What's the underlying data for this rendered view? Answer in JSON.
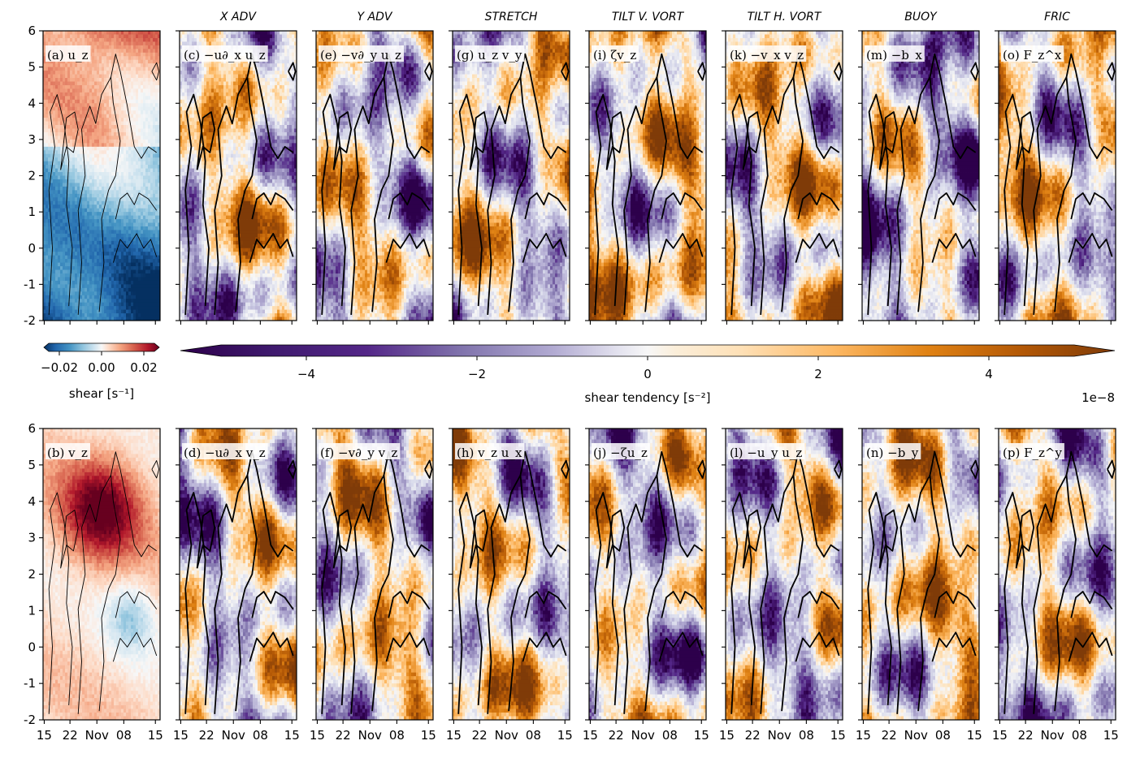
{
  "chart_data": {
    "type": "heatmap",
    "y_ticks": [
      "-2",
      "-1",
      "0",
      "1",
      "2",
      "3",
      "4",
      "5",
      "6"
    ],
    "ylim": [
      -2,
      6
    ],
    "x_ticks": [
      "15",
      "22",
      "Nov",
      "08",
      "15"
    ],
    "column_titles": [
      "",
      "X ADV",
      "Y ADV",
      "STRETCH",
      "TILT V. VORT",
      "TILT H. VORT",
      "BUOY",
      "FRIC"
    ],
    "panels_top": [
      {
        "label": "(a) u_z",
        "colormap": "shear"
      },
      {
        "label": "(c) −u∂_x u_z",
        "colormap": "tendency"
      },
      {
        "label": "(e) −v∂_y u_z",
        "colormap": "tendency"
      },
      {
        "label": "(g) u_z v_y",
        "colormap": "tendency"
      },
      {
        "label": "(i) ζv_z",
        "colormap": "tendency"
      },
      {
        "label": "(k) −v_x v_z",
        "colormap": "tendency"
      },
      {
        "label": "(m) −b_x",
        "colormap": "tendency"
      },
      {
        "label": "(o) F_z^x",
        "colormap": "tendency"
      }
    ],
    "panels_bottom": [
      {
        "label": "(b) v_z",
        "colormap": "shear"
      },
      {
        "label": "(d) −u∂_x v_z",
        "colormap": "tendency"
      },
      {
        "label": "(f) −v∂_y v_z",
        "colormap": "tendency"
      },
      {
        "label": "(h) v_z u_x",
        "colormap": "tendency"
      },
      {
        "label": "(j) −ζu_z",
        "colormap": "tendency"
      },
      {
        "label": "(l) −u_y u_z",
        "colormap": "tendency"
      },
      {
        "label": "(n) −b_y",
        "colormap": "tendency"
      },
      {
        "label": "(p) F_z^y",
        "colormap": "tendency"
      }
    ],
    "colorbar_shear": {
      "ticks": [
        "−0.02",
        "0.00",
        "0.02"
      ],
      "range": [
        -0.025,
        0.025
      ],
      "label": "shear [s⁻¹]",
      "colors": [
        "#053061",
        "#2166ac",
        "#4393c3",
        "#92c5de",
        "#d1e5f0",
        "#f7f7f7",
        "#fddbc7",
        "#f4a582",
        "#d6604d",
        "#b2182b",
        "#67001f"
      ]
    },
    "colorbar_tendency": {
      "ticks": [
        "−4",
        "−2",
        "0",
        "2",
        "4"
      ],
      "range": [
        -5,
        5
      ],
      "label": "shear tendency [s⁻²]",
      "offset": "1e−8",
      "colors": [
        "#2d004b",
        "#542788",
        "#8073ac",
        "#b2abd2",
        "#d8daeb",
        "#f7f7f7",
        "#fee0b6",
        "#fdb863",
        "#e08214",
        "#b35806",
        "#7f3b08"
      ]
    }
  }
}
